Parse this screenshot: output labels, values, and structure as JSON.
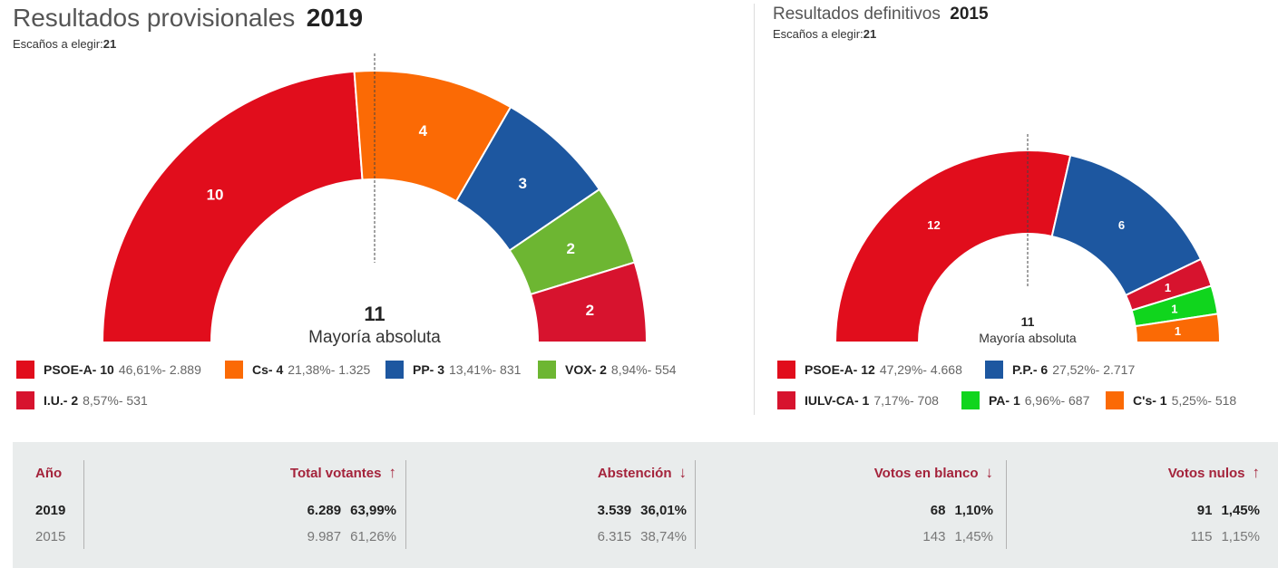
{
  "colors": {
    "psoe": "#e10d1c",
    "cs": "#fb6a05",
    "pp": "#1d57a0",
    "vox": "#6db632",
    "iu": "#d7132e",
    "pa": "#10d51d",
    "header_red": "#a4233b",
    "table_bg": "#e9ecec"
  },
  "panel2019": {
    "title": "Resultados provisionales",
    "year": "2019",
    "seats_label": "Escaños a elegir:",
    "seats_total": "21",
    "majority_number": "11",
    "majority_label": "Mayoría absoluta",
    "legend": [
      {
        "name": "PSOE-A- 10",
        "extra": "46,61%- 2.889",
        "color": "#e10d1c"
      },
      {
        "name": "Cs- 4",
        "extra": "21,38%- 1.325",
        "color": "#fb6a05"
      },
      {
        "name": "PP- 3",
        "extra": "13,41%- 831",
        "color": "#1d57a0"
      },
      {
        "name": "VOX- 2",
        "extra": "8,94%- 554",
        "color": "#6db632"
      },
      {
        "name": "I.U.- 2",
        "extra": "8,57%- 531",
        "color": "#d7132e"
      }
    ]
  },
  "panel2015": {
    "title": "Resultados definitivos",
    "year": "2015",
    "seats_label": "Escaños a elegir:",
    "seats_total": "21",
    "majority_number": "11",
    "majority_label": "Mayoría absoluta",
    "legend": [
      {
        "name": "PSOE-A- 12",
        "extra": "47,29%- 4.668",
        "color": "#e10d1c"
      },
      {
        "name": "P.P.- 6",
        "extra": "27,52%- 2.717",
        "color": "#1d57a0"
      },
      {
        "name": "IULV-CA- 1",
        "extra": "7,17%- 708",
        "color": "#d7132e"
      },
      {
        "name": "PA- 1",
        "extra": "6,96%- 687",
        "color": "#10d51d"
      },
      {
        "name": "C's- 1",
        "extra": "5,25%- 518",
        "color": "#fb6a05"
      }
    ]
  },
  "chart_data": [
    {
      "type": "pie",
      "title": "Resultados provisionales 2019",
      "total_seats": 21,
      "majority": 11,
      "categories": [
        "PSOE-A",
        "Cs",
        "PP",
        "VOX",
        "I.U."
      ],
      "values": [
        10,
        4,
        3,
        2,
        2
      ],
      "labels": [
        "10",
        "4",
        "3",
        "2",
        "2"
      ],
      "colors": [
        "#e10d1c",
        "#fb6a05",
        "#1d57a0",
        "#6db632",
        "#d7132e"
      ]
    },
    {
      "type": "pie",
      "title": "Resultados definitivos 2015",
      "total_seats": 21,
      "majority": 11,
      "categories": [
        "PSOE-A",
        "P.P.",
        "IULV-CA",
        "PA",
        "C's"
      ],
      "values": [
        12,
        6,
        1,
        1,
        1
      ],
      "labels": [
        "12",
        "6",
        "1",
        "1",
        "1"
      ],
      "colors": [
        "#e10d1c",
        "#1d57a0",
        "#d7132e",
        "#10d51d",
        "#fb6a05"
      ]
    }
  ],
  "table": {
    "headers": {
      "year": "Año",
      "voters": "Total votantes",
      "voters_arrow": "↑",
      "abstention": "Abstención",
      "abstention_arrow": "↓",
      "blank": "Votos en blanco",
      "blank_arrow": "↓",
      "null": "Votos nulos",
      "null_arrow": "↑"
    },
    "rows": [
      {
        "year": "2019",
        "voters": "6.289",
        "voters_pct": "63,99%",
        "abstention": "3.539",
        "abstention_pct": "36,01%",
        "blank": "68",
        "blank_pct": "1,10%",
        "null": "91",
        "null_pct": "1,45%"
      },
      {
        "year": "2015",
        "voters": "9.987",
        "voters_pct": "61,26%",
        "abstention": "6.315",
        "abstention_pct": "38,74%",
        "blank": "143",
        "blank_pct": "1,45%",
        "null": "115",
        "null_pct": "1,15%"
      }
    ]
  }
}
